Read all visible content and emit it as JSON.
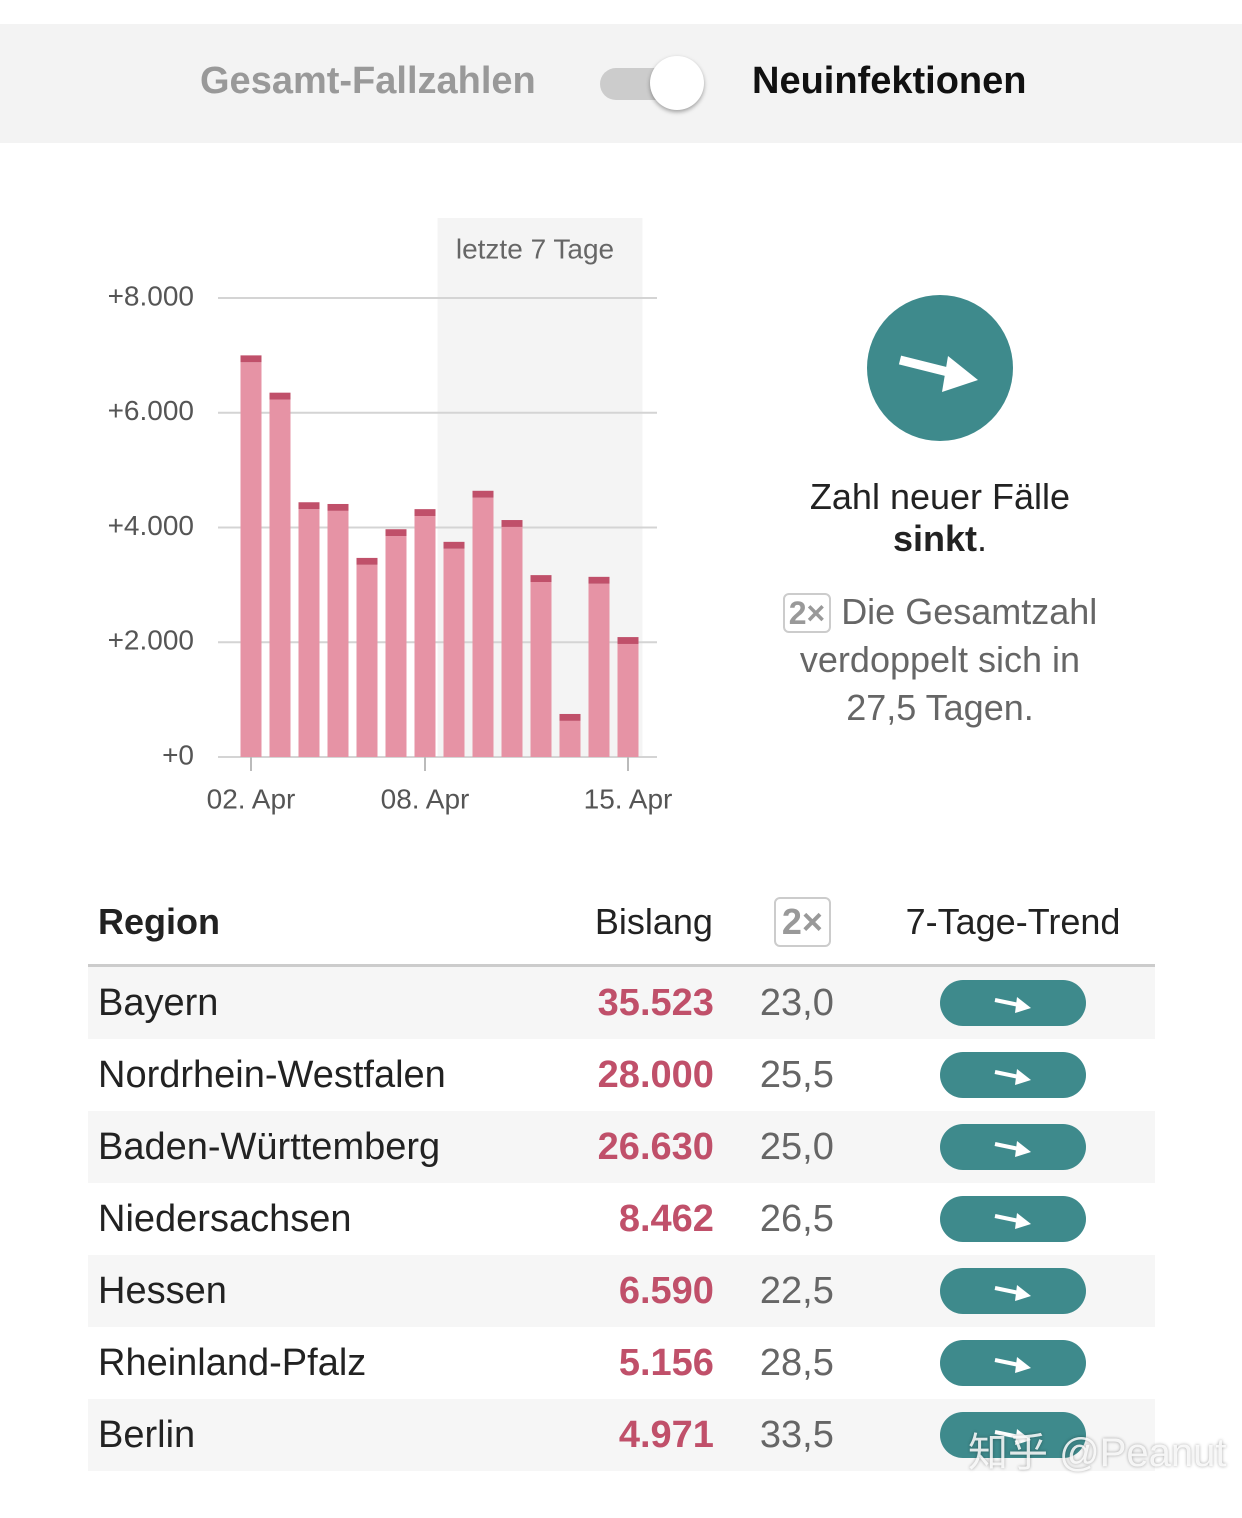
{
  "toggle": {
    "left": "Gesamt-Fallzahlen",
    "right": "Neuinfektionen"
  },
  "chart_data": {
    "type": "bar",
    "categories": [
      "02. Apr",
      null,
      null,
      null,
      null,
      null,
      "08. Apr",
      null,
      null,
      null,
      null,
      null,
      null,
      "15. Apr"
    ],
    "series": [
      {
        "color": "#e693a5",
        "values": [
          6880,
          6230,
          4320,
          4290,
          3350,
          3850,
          4200,
          3630,
          4520,
          4010,
          3050,
          630,
          3020,
          1970
        ]
      },
      {
        "color": "#c0506a",
        "values": [
          120,
          120,
          120,
          120,
          120,
          120,
          120,
          120,
          120,
          120,
          120,
          120,
          120,
          120
        ]
      }
    ],
    "ylim": [
      0,
      8000
    ],
    "yticks": [
      {
        "value": 0,
        "label": "+0"
      },
      {
        "value": 2000,
        "label": "+2.000"
      },
      {
        "value": 4000,
        "label": "+4.000"
      },
      {
        "value": 6000,
        "label": "+6.000"
      },
      {
        "value": 8000,
        "label": "+8.000"
      }
    ],
    "grid": true,
    "highlight": {
      "label": "letzte 7 Tage",
      "from_index": 7,
      "to_index": 13
    }
  },
  "panel": {
    "trend_text": "Zahl neuer Fälle",
    "trend_word": "sinkt",
    "trend_end": ".",
    "badge": "2×",
    "doubling_text": "Die Gesamtzahl verdoppelt sich in 27,5 Tagen."
  },
  "table": {
    "header": [
      "Region",
      "Bislang",
      "2×",
      "7-Tage-Trend"
    ],
    "rows": [
      [
        "Bayern",
        "35.523",
        "23,0"
      ],
      [
        "Nordrhein-Westfalen",
        "28.000",
        "25,5"
      ],
      [
        "Baden-Württemberg",
        "26.630",
        "25,0"
      ],
      [
        "Niedersachsen",
        "8.462",
        "26,5"
      ],
      [
        "Hessen",
        "6.590",
        "22,5"
      ],
      [
        "Rheinland-Pfalz",
        "5.156",
        "28,5"
      ],
      [
        "Berlin",
        "4.971",
        "33,5"
      ]
    ]
  },
  "watermark": "知乎 @Peanut"
}
